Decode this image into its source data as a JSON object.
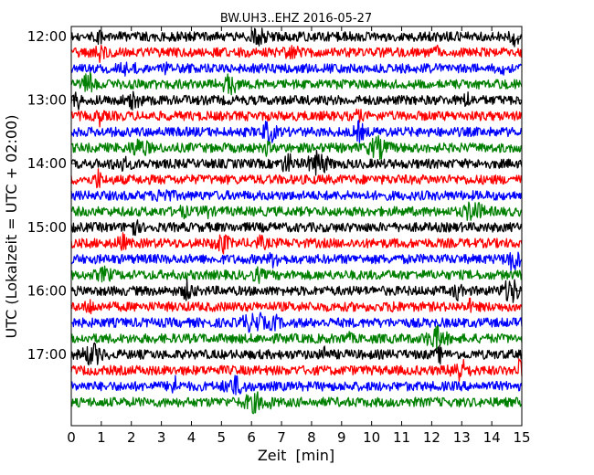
{
  "chart_data": {
    "type": "line",
    "title": "BW.UH3..EHZ 2016-05-27",
    "xlabel": "Zeit  [min]",
    "ylabel": "UTC (Lokalzeit = UTC + 02:00)",
    "xlim": [
      0,
      15
    ],
    "x_ticks": [
      0,
      1,
      2,
      3,
      4,
      5,
      6,
      7,
      8,
      9,
      10,
      11,
      12,
      13,
      14,
      15
    ],
    "y_tick_labels": [
      "12:00",
      "13:00",
      "14:00",
      "15:00",
      "16:00",
      "17:00"
    ],
    "trace_start_times": [
      "12:00",
      "12:15",
      "12:30",
      "12:45",
      "13:00",
      "13:15",
      "13:30",
      "13:45",
      "14:00",
      "14:15",
      "14:30",
      "14:45",
      "15:00",
      "15:15",
      "15:30",
      "15:45",
      "16:00",
      "16:15",
      "16:30",
      "16:45",
      "17:00",
      "17:15",
      "17:30",
      "17:45"
    ],
    "trace_color_cycle": [
      "#000000",
      "#ff0000",
      "#0000ff",
      "#008000"
    ],
    "grid": false,
    "legend": "none"
  }
}
